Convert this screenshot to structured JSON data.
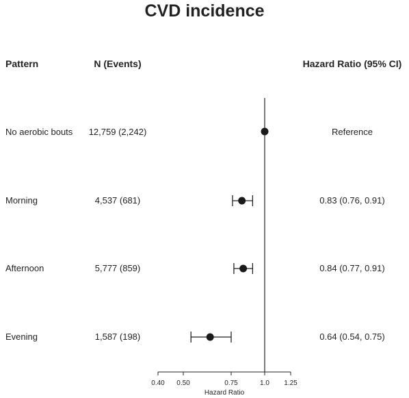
{
  "chart_data": {
    "type": "forest",
    "title": "CVD incidence",
    "columns": {
      "pattern": "Pattern",
      "n_events": "N (Events)",
      "hr_ci": "Hazard Ratio (95% CI)"
    },
    "xlabel": "Hazard Ratio",
    "xticks": [
      0.4,
      0.5,
      0.75,
      1.0,
      1.25
    ],
    "xtick_labels": [
      "0.40",
      "0.50",
      "0.75",
      "1.0",
      "1.25"
    ],
    "xlim": [
      0.4,
      1.25
    ],
    "reference_line": 1.0,
    "rows": [
      {
        "pattern": "No aerobic bouts",
        "n_events": "12,759 (2,242)",
        "hr_text": "Reference",
        "hr": 1.0,
        "lo": null,
        "hi": null
      },
      {
        "pattern": "Morning",
        "n_events": "4,537 (681)",
        "hr_text": "0.83 (0.76, 0.91)",
        "hr": 0.83,
        "lo": 0.76,
        "hi": 0.91
      },
      {
        "pattern": "Afternoon",
        "n_events": "5,777 (859)",
        "hr_text": "0.84 (0.77, 0.91)",
        "hr": 0.84,
        "lo": 0.77,
        "hi": 0.91
      },
      {
        "pattern": "Evening",
        "n_events": "1,587 (198)",
        "hr_text": "0.64 (0.54, 0.75)",
        "hr": 0.64,
        "lo": 0.54,
        "hi": 0.75
      }
    ]
  }
}
